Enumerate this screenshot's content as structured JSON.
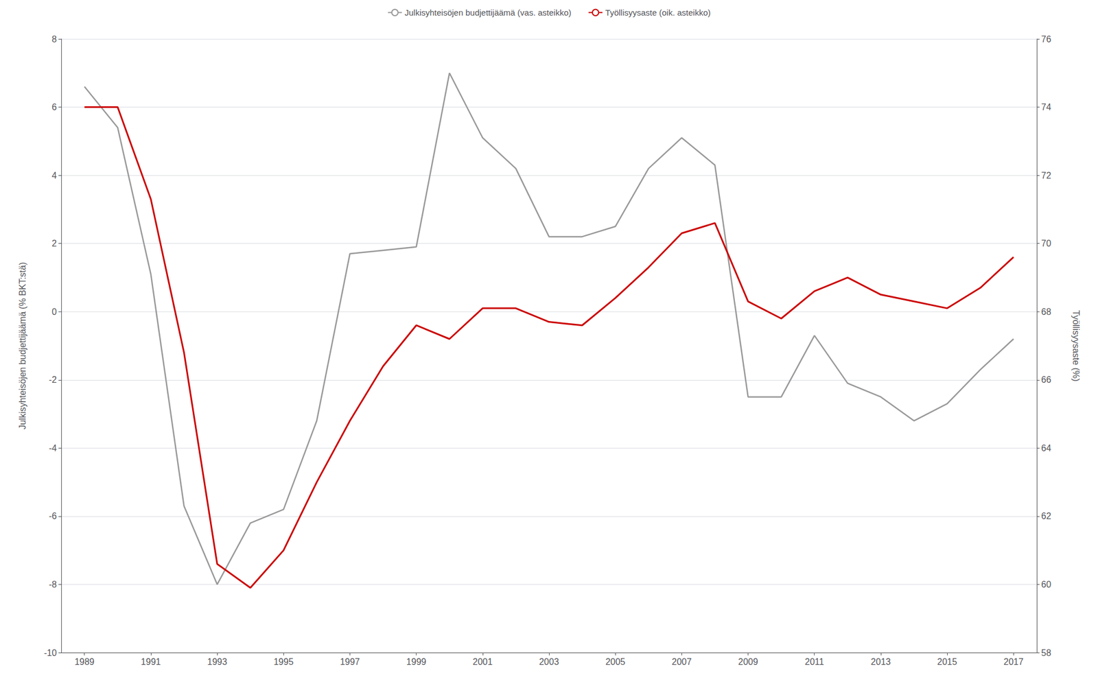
{
  "chart_data": {
    "type": "line",
    "x": [
      1989,
      1990,
      1991,
      1992,
      1993,
      1994,
      1995,
      1996,
      1997,
      1998,
      1999,
      2000,
      2001,
      2002,
      2003,
      2004,
      2005,
      2006,
      2007,
      2008,
      2009,
      2010,
      2011,
      2012,
      2013,
      2014,
      2015,
      2016,
      2017
    ],
    "series": [
      {
        "name": "Julkisyhteisöjen budjettijäämä (vas. asteikko)",
        "color": "#999999",
        "values": [
          6.6,
          5.4,
          1.1,
          -5.7,
          -8.0,
          -6.2,
          -5.8,
          -3.2,
          1.7,
          1.8,
          1.9,
          7.0,
          5.1,
          4.2,
          2.2,
          2.2,
          2.5,
          4.2,
          5.1,
          4.3,
          -2.5,
          -2.5,
          -0.7,
          -2.1,
          -2.5,
          -3.2,
          -2.7,
          -1.7,
          -0.8
        ]
      },
      {
        "name": "Työllisyysaste (oik. asteikko)",
        "color": "#cc0000",
        "axis": "y2",
        "values": [
          74.0,
          74.0,
          71.3,
          66.8,
          60.6,
          59.9,
          61.0,
          63.0,
          64.8,
          66.4,
          67.6,
          67.2,
          68.1,
          68.1,
          67.7,
          67.6,
          68.4,
          69.3,
          70.3,
          70.6,
          68.3,
          67.8,
          68.6,
          69.0,
          68.5,
          68.3,
          68.1,
          68.7,
          69.6
        ]
      }
    ],
    "ylabel": "Julkisyhteisöjen budjettijäämä (% BKT:stä)",
    "y2label": "Työllisyysaste (%)",
    "xlim": [
      1988.3,
      2017.7
    ],
    "xticks": [
      1989,
      1991,
      1993,
      1995,
      1997,
      1999,
      2001,
      2003,
      2005,
      2007,
      2009,
      2011,
      2013,
      2015,
      2017
    ],
    "ylim": [
      -10,
      8
    ],
    "yticks": [
      -10,
      -8,
      -6,
      -4,
      -2,
      0,
      2,
      4,
      6,
      8
    ],
    "y2lim": [
      58,
      76
    ],
    "y2ticks": [
      58,
      60,
      62,
      64,
      66,
      68,
      70,
      72,
      74,
      76
    ],
    "grid": true,
    "legend": "top"
  }
}
